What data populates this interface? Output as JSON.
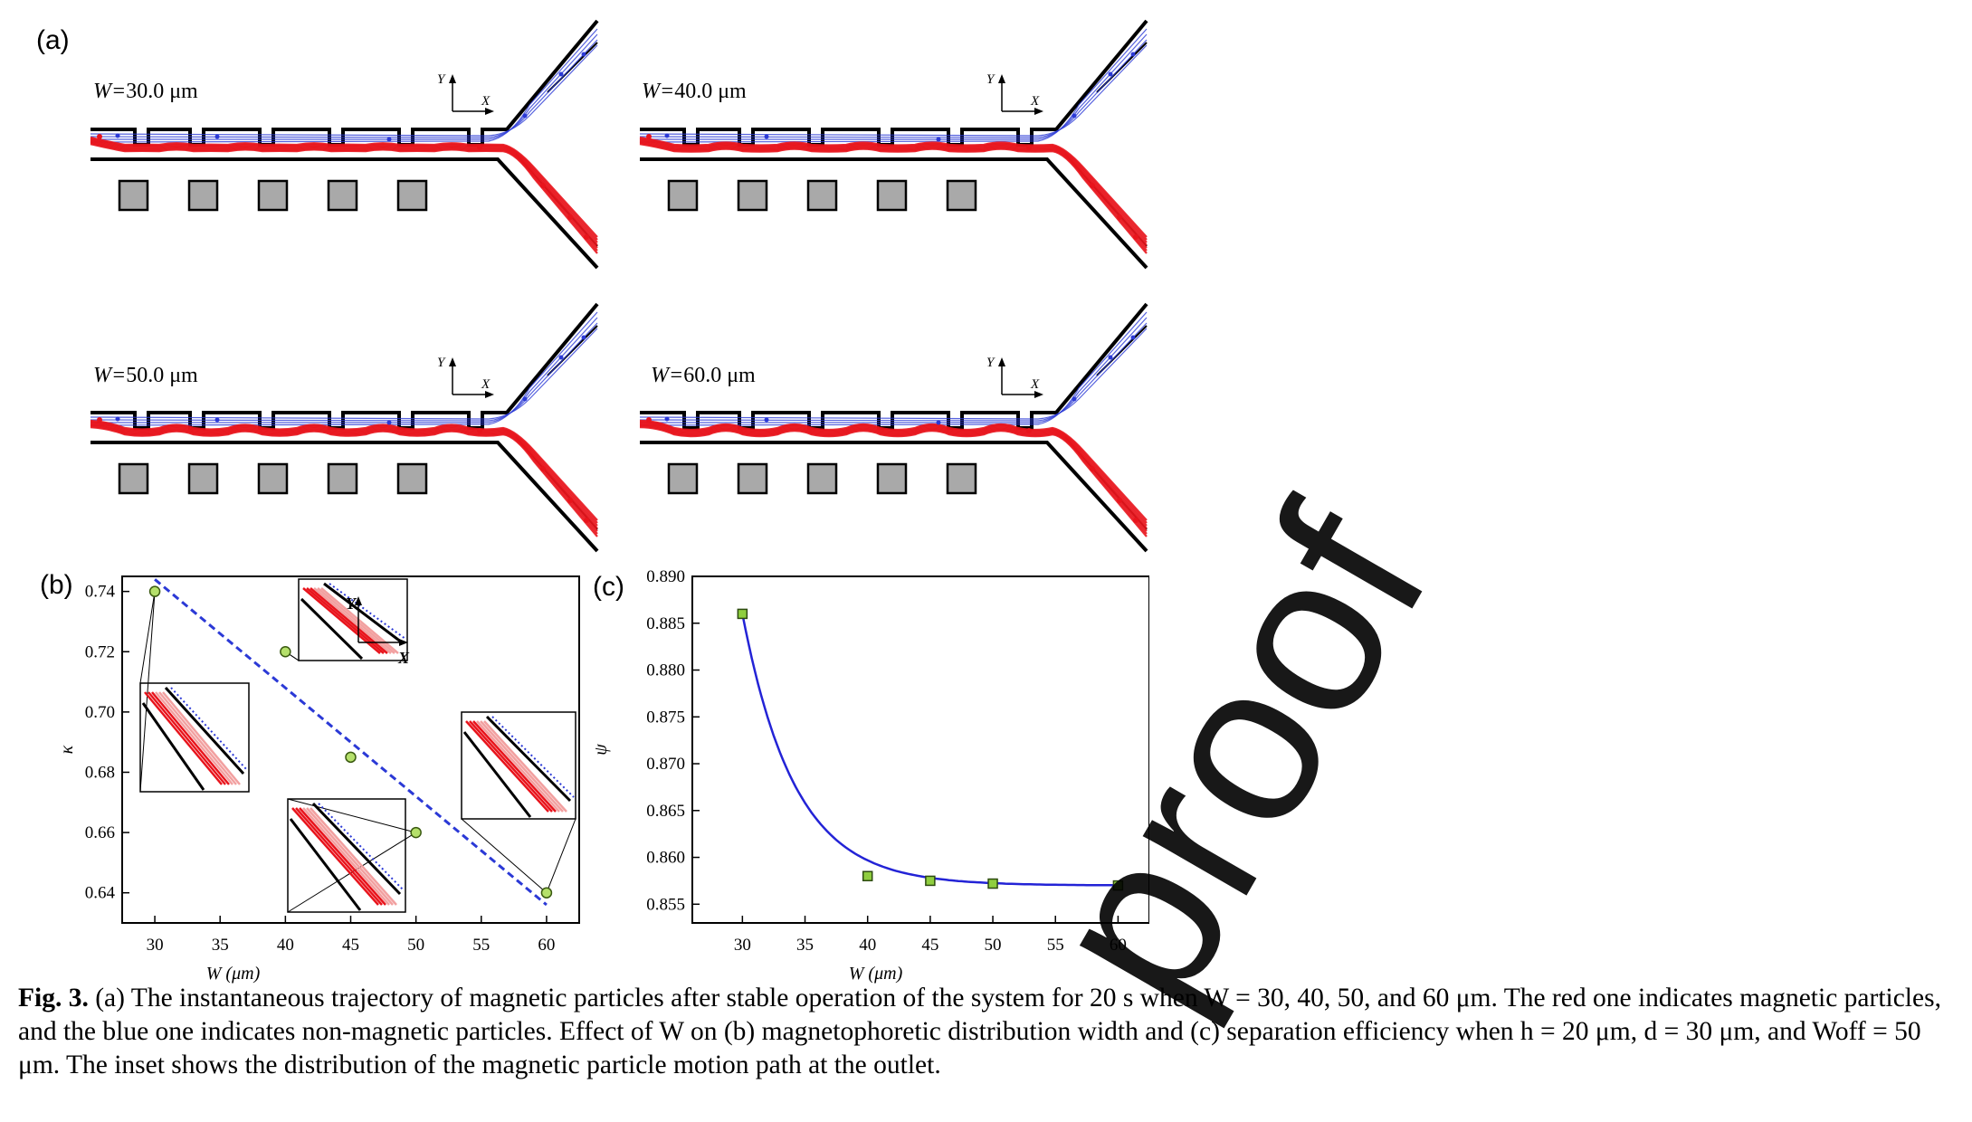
{
  "panel_a": {
    "label": "(a)",
    "cases": [
      {
        "w_value": "30.0",
        "unit": "μm",
        "prefix": "W=",
        "axis_y": "Y",
        "axis_x": "X"
      },
      {
        "w_value": "40.0",
        "unit": "μm",
        "prefix": "W=",
        "axis_y": "Y",
        "axis_x": "X"
      },
      {
        "w_value": "50.0",
        "unit": "μm",
        "prefix": "W=",
        "axis_y": "Y",
        "axis_x": "X"
      },
      {
        "w_value": "60.0",
        "unit": "μm",
        "prefix": "W=",
        "axis_y": "Y",
        "axis_x": "X"
      }
    ],
    "colors": {
      "magnetic": "#e8141c",
      "nonmagnetic": "#2b39d6",
      "magnet": "#a9a9a9"
    }
  },
  "panel_b": {
    "label": "(b)",
    "inset_axis_y": "Y",
    "inset_axis_x": "X"
  },
  "panel_c": {
    "label": "(c)"
  },
  "chart_data": [
    {
      "type": "scatter",
      "panel": "(b)",
      "xlabel": "W (μm)",
      "ylabel": "κ",
      "xlim": [
        27.5,
        62.5
      ],
      "ylim": [
        0.63,
        0.745
      ],
      "xticks": [
        30,
        35,
        40,
        45,
        50,
        55,
        60
      ],
      "yticks": [
        0.64,
        0.66,
        0.68,
        0.7,
        0.72,
        0.74
      ],
      "ytick_labels": [
        "0.64",
        "0.66",
        "0.68",
        "0.70",
        "0.72",
        "0.74"
      ],
      "points": {
        "x": [
          30,
          40,
          45,
          50,
          60
        ],
        "y": [
          0.74,
          0.72,
          0.685,
          0.66,
          0.64
        ]
      },
      "fit_line": {
        "x": [
          30,
          60
        ],
        "y": [
          0.744,
          0.636
        ],
        "style": "dashed",
        "color": "#2b39d6"
      },
      "marker_color": "#b5e06b"
    },
    {
      "type": "scatter",
      "panel": "(c)",
      "xlabel": "W (μm)",
      "ylabel": "ψ",
      "xlim": [
        26,
        62.5
      ],
      "ylim": [
        0.853,
        0.89
      ],
      "xticks": [
        30,
        35,
        40,
        45,
        50,
        55,
        60
      ],
      "yticks": [
        0.855,
        0.86,
        0.865,
        0.87,
        0.875,
        0.88,
        0.885,
        0.89
      ],
      "ytick_labels": [
        "0.855",
        "0.860",
        "0.865",
        "0.870",
        "0.875",
        "0.880",
        "0.885",
        "0.890"
      ],
      "points": {
        "x": [
          30,
          40,
          45,
          50,
          60
        ],
        "y": [
          0.886,
          0.858,
          0.8575,
          0.8572,
          0.857
        ]
      },
      "fit_curve": {
        "type": "exponential",
        "asymptote": 0.857,
        "amplitude": 0.029,
        "decay": 4.2,
        "x0": 30,
        "color": "#2323d6"
      },
      "marker_color": "#8fce3f"
    }
  ],
  "caption": {
    "fig_label": "Fig. 3.",
    "text": " (a) The instantaneous trajectory of magnetic particles after stable operation of the system for 20 s when W = 30, 40, 50, and 60 μm. The red one indicates magnetic particles, and the blue one indicates non-magnetic particles. Effect of W on (b) magnetophoretic distribution width and (c) separation efficiency when h = 20 μm, d = 30 μm, and Woff = 50 μm. The inset shows the distribution of the magnetic particle motion path at the outlet."
  },
  "watermark": "proof"
}
